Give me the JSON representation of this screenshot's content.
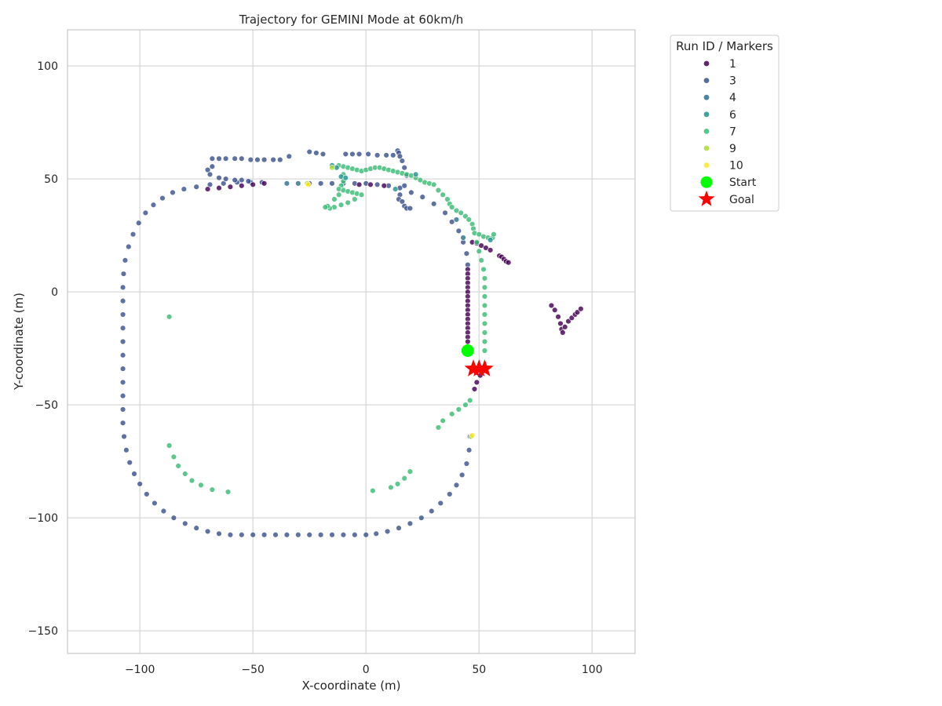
{
  "chart_data": {
    "type": "scatter",
    "title": "Trajectory for GEMINI Mode at 60km/h",
    "xlabel": "X-coordinate (m)",
    "ylabel": "Y-coordinate (m)",
    "xlim": [
      -132,
      119
    ],
    "ylim": [
      -160,
      116
    ],
    "xticks": [
      -100,
      -50,
      0,
      50,
      100
    ],
    "yticks": [
      100,
      50,
      0,
      -50,
      -100,
      -150
    ],
    "xtick_labels": [
      "−100",
      "−50",
      "0",
      "50",
      "100"
    ],
    "ytick_labels": [
      "100",
      "50",
      "0",
      "−50",
      "−100",
      "−150"
    ],
    "grid": true,
    "legend": {
      "title": "Run ID / Markers",
      "placement": "outside upper right",
      "entries": [
        {
          "label": "1",
          "color": "#440154",
          "marker": "circle"
        },
        {
          "label": "3",
          "color": "#3b528b",
          "marker": "circle"
        },
        {
          "label": "4",
          "color": "#2c728e",
          "marker": "circle"
        },
        {
          "label": "6",
          "color": "#21918c",
          "marker": "circle"
        },
        {
          "label": "7",
          "color": "#3bbb75",
          "marker": "circle"
        },
        {
          "label": "9",
          "color": "#addc30",
          "marker": "circle"
        },
        {
          "label": "10",
          "color": "#fde725",
          "marker": "circle"
        },
        {
          "label": "Start",
          "color": "#00ff00",
          "marker": "big-circle"
        },
        {
          "label": "Goal",
          "color": "#ff0000",
          "marker": "star"
        }
      ]
    },
    "series": [
      {
        "name": "3",
        "color": "#3b528b",
        "points": [
          [
            -25,
            48
          ],
          [
            -20,
            48
          ],
          [
            -15,
            48
          ],
          [
            -10,
            48
          ],
          [
            -5,
            48
          ],
          [
            0,
            48
          ],
          [
            5,
            47.5
          ],
          [
            10,
            47
          ],
          [
            15,
            46
          ],
          [
            20,
            44
          ],
          [
            25,
            42
          ],
          [
            30,
            39
          ],
          [
            35,
            35
          ],
          [
            38,
            31
          ],
          [
            41,
            27
          ],
          [
            43,
            22
          ],
          [
            44.5,
            17
          ],
          [
            45,
            12
          ],
          [
            46,
            -64
          ],
          [
            45.6,
            -70
          ],
          [
            44.5,
            -76
          ],
          [
            42.5,
            -81
          ],
          [
            40,
            -85.5
          ],
          [
            37,
            -89.5
          ],
          [
            33,
            -93.5
          ],
          [
            29,
            -97
          ],
          [
            24.5,
            -100
          ],
          [
            19.5,
            -102.5
          ],
          [
            14.5,
            -104.5
          ],
          [
            9.5,
            -106
          ],
          [
            4.5,
            -107
          ],
          [
            0,
            -107.5
          ],
          [
            -5,
            -107.5
          ],
          [
            -10,
            -107.5
          ],
          [
            -15,
            -107.5
          ],
          [
            -20,
            -107.5
          ],
          [
            -25,
            -107.5
          ],
          [
            -30,
            -107.5
          ],
          [
            -35,
            -107.5
          ],
          [
            -40,
            -107.5
          ],
          [
            -45,
            -107.5
          ],
          [
            -50,
            -107.5
          ],
          [
            -55,
            -107.5
          ],
          [
            -60,
            -107.5
          ],
          [
            -65,
            -107
          ],
          [
            -70,
            -106
          ],
          [
            -75,
            -104.5
          ],
          [
            -80,
            -102.5
          ],
          [
            -85,
            -100
          ],
          [
            -89.5,
            -97
          ],
          [
            -93.5,
            -93.5
          ],
          [
            -97,
            -89.5
          ],
          [
            -100,
            -85
          ],
          [
            -102.5,
            -80.5
          ],
          [
            -104.5,
            -75.5
          ],
          [
            -106,
            -70
          ],
          [
            -107,
            -64
          ],
          [
            -107.5,
            -58
          ],
          [
            -107.5,
            -52
          ],
          [
            -107.5,
            -46
          ],
          [
            -107.5,
            -40
          ],
          [
            -107.5,
            -34
          ],
          [
            -107.5,
            -28
          ],
          [
            -107.5,
            -22
          ],
          [
            -107.5,
            -16
          ],
          [
            -107.5,
            -10
          ],
          [
            -107.5,
            -4
          ],
          [
            -107.5,
            2
          ],
          [
            -107.2,
            8
          ],
          [
            -106.5,
            14
          ],
          [
            -105,
            20
          ],
          [
            -103,
            25.5
          ],
          [
            -100.5,
            30.5
          ],
          [
            -97.5,
            35
          ],
          [
            -94,
            38.5
          ],
          [
            -90,
            41.5
          ],
          [
            -85.5,
            44
          ],
          [
            -80.5,
            45.5
          ],
          [
            -75,
            46.5
          ],
          [
            -69,
            47.5
          ],
          [
            -63,
            48
          ],
          [
            -57,
            48.5
          ],
          [
            -51,
            48.5
          ],
          [
            -46,
            48.5
          ],
          [
            -68,
            59
          ],
          [
            -65,
            59
          ],
          [
            -62,
            59
          ],
          [
            -58,
            59
          ],
          [
            -55,
            59
          ],
          [
            -51,
            58.5
          ],
          [
            -48,
            58.5
          ],
          [
            -45,
            58.5
          ],
          [
            -41,
            58.5
          ],
          [
            -38,
            58.5
          ],
          [
            -34,
            60
          ],
          [
            -25,
            62
          ],
          [
            -22,
            61.5
          ],
          [
            -19,
            61
          ],
          [
            -9,
            61
          ],
          [
            -6,
            61
          ],
          [
            -3,
            61
          ],
          [
            1,
            61
          ],
          [
            5,
            60.5
          ],
          [
            9,
            60.5
          ],
          [
            12,
            60.5
          ],
          [
            14,
            62.5
          ],
          [
            14.5,
            61.5
          ],
          [
            15,
            60
          ],
          [
            16,
            58
          ],
          [
            17,
            55
          ],
          [
            18,
            51.5
          ],
          [
            17,
            47
          ],
          [
            15,
            43
          ],
          [
            14.5,
            41
          ],
          [
            16,
            40
          ],
          [
            17,
            38
          ],
          [
            18,
            37
          ],
          [
            19.5,
            37
          ],
          [
            -68,
            55.5
          ],
          [
            -70,
            54
          ],
          [
            -69,
            52
          ],
          [
            -65,
            50.5
          ],
          [
            -62,
            50
          ],
          [
            -58,
            49.5
          ],
          [
            -55,
            49.5
          ],
          [
            -52,
            49
          ]
        ]
      },
      {
        "name": "1",
        "color": "#440154",
        "points": [
          [
            45,
            10
          ],
          [
            45,
            8
          ],
          [
            45,
            6
          ],
          [
            45,
            4
          ],
          [
            45,
            2
          ],
          [
            45,
            0
          ],
          [
            45,
            -2
          ],
          [
            45,
            -4
          ],
          [
            45,
            -6
          ],
          [
            45,
            -8
          ],
          [
            45,
            -10
          ],
          [
            45,
            -12
          ],
          [
            45,
            -14
          ],
          [
            45,
            -16
          ],
          [
            45,
            -18
          ],
          [
            45,
            -20
          ],
          [
            45,
            -22
          ],
          [
            -3,
            47.5
          ],
          [
            2,
            47.5
          ],
          [
            8,
            47
          ],
          [
            -45,
            48
          ],
          [
            -50,
            47.5
          ],
          [
            -55,
            47
          ],
          [
            -60,
            46.5
          ],
          [
            -65,
            46
          ],
          [
            -70,
            45.5
          ],
          [
            47,
            22
          ],
          [
            49,
            21.5
          ],
          [
            51,
            20.5
          ],
          [
            53,
            19.5
          ],
          [
            55,
            18.5
          ],
          [
            59,
            16
          ],
          [
            60,
            15.5
          ],
          [
            61,
            14.5
          ],
          [
            62,
            13.5
          ],
          [
            63,
            13
          ],
          [
            82,
            -6
          ],
          [
            83.5,
            -8
          ],
          [
            85,
            -11
          ],
          [
            86,
            -14
          ],
          [
            86.5,
            -16.5
          ],
          [
            87,
            -18
          ],
          [
            88,
            -15.5
          ],
          [
            89.5,
            -13
          ],
          [
            91,
            -11.5
          ],
          [
            92.5,
            -10
          ],
          [
            93.5,
            -9
          ],
          [
            95,
            -7.5
          ],
          [
            48,
            -43
          ],
          [
            49,
            -40
          ],
          [
            50.5,
            -37
          ]
        ]
      },
      {
        "name": "7",
        "color": "#3bbb75",
        "points": [
          [
            -12,
            56
          ],
          [
            -10,
            55.5
          ],
          [
            -8,
            55
          ],
          [
            -6,
            54.5
          ],
          [
            -4,
            54
          ],
          [
            -2,
            53.5
          ],
          [
            0,
            54
          ],
          [
            2,
            54.5
          ],
          [
            4,
            55
          ],
          [
            6,
            55
          ],
          [
            8,
            54.5
          ],
          [
            10,
            54
          ],
          [
            12,
            53.5
          ],
          [
            14,
            53
          ],
          [
            16,
            52.5
          ],
          [
            18,
            52
          ],
          [
            20,
            51.5
          ],
          [
            22,
            50.5
          ],
          [
            24,
            49.5
          ],
          [
            26,
            48.5
          ],
          [
            28,
            48
          ],
          [
            30,
            47.5
          ],
          [
            32,
            45
          ],
          [
            34,
            43
          ],
          [
            36,
            41
          ],
          [
            37,
            39
          ],
          [
            38,
            37.5
          ],
          [
            40,
            36
          ],
          [
            42,
            35
          ],
          [
            44,
            33.5
          ],
          [
            45.5,
            32
          ],
          [
            47,
            30
          ],
          [
            47.5,
            28
          ],
          [
            48,
            26
          ],
          [
            50,
            25.5
          ],
          [
            52,
            24.5
          ],
          [
            54,
            24
          ],
          [
            56,
            24
          ],
          [
            56.5,
            25.5
          ],
          [
            -10,
            49
          ],
          [
            -11,
            47
          ],
          [
            -12,
            45.5
          ],
          [
            -10,
            45
          ],
          [
            -8,
            44.5
          ],
          [
            -6,
            44
          ],
          [
            -4,
            43.5
          ],
          [
            -2,
            43
          ],
          [
            -5,
            41
          ],
          [
            -8,
            39.5
          ],
          [
            -11,
            38.5
          ],
          [
            -14,
            37.5
          ],
          [
            -16,
            37
          ],
          [
            -17,
            38
          ],
          [
            -18,
            37.5
          ],
          [
            -14,
            41
          ],
          [
            -12,
            43
          ],
          [
            -10,
            52
          ],
          [
            49,
            22
          ],
          [
            50,
            18
          ],
          [
            51,
            14
          ],
          [
            52,
            10
          ],
          [
            52.5,
            6
          ],
          [
            52.5,
            2
          ],
          [
            52.5,
            -2
          ],
          [
            52.5,
            -6
          ],
          [
            52.5,
            -10
          ],
          [
            52.5,
            -14
          ],
          [
            52.5,
            -18
          ],
          [
            52.5,
            -22
          ],
          [
            52.5,
            -26
          ],
          [
            46,
            -48
          ],
          [
            44,
            -50
          ],
          [
            41,
            -52
          ],
          [
            38,
            -54
          ],
          [
            34,
            -57
          ],
          [
            32,
            -60
          ],
          [
            -87,
            -11
          ],
          [
            -87,
            -68
          ],
          [
            -85,
            -73
          ],
          [
            -83,
            -77
          ],
          [
            -80,
            -80.5
          ],
          [
            -77,
            -83.5
          ],
          [
            -73,
            -85.5
          ],
          [
            -68,
            -87.5
          ],
          [
            -61,
            -88.5
          ],
          [
            3,
            -88
          ],
          [
            11,
            -86.5
          ],
          [
            14,
            -85
          ],
          [
            17,
            -82.5
          ],
          [
            19.5,
            -79.5
          ]
        ]
      },
      {
        "name": "6",
        "color": "#21918c",
        "points": [
          [
            -15,
            56
          ],
          [
            -13,
            55
          ],
          [
            -11,
            51
          ],
          [
            -9,
            50.5
          ],
          [
            13,
            45.5
          ],
          [
            22,
            52
          ],
          [
            55,
            23
          ]
        ]
      },
      {
        "name": "4",
        "color": "#2c728e",
        "points": [
          [
            -35,
            48
          ],
          [
            -30,
            48
          ],
          [
            40,
            32
          ],
          [
            43,
            24
          ]
        ]
      },
      {
        "name": "9",
        "color": "#addc30",
        "points": [
          [
            -26,
            48
          ],
          [
            -15,
            55
          ],
          [
            46.5,
            -64
          ]
        ]
      },
      {
        "name": "10",
        "color": "#fde725",
        "points": [
          [
            -25.5,
            47.5
          ],
          [
            47,
            -63.5
          ]
        ]
      }
    ],
    "start": {
      "x": 45,
      "y": -26
    },
    "goals": [
      [
        47.5,
        -34
      ],
      [
        50,
        -34
      ],
      [
        52.5,
        -34
      ]
    ]
  }
}
